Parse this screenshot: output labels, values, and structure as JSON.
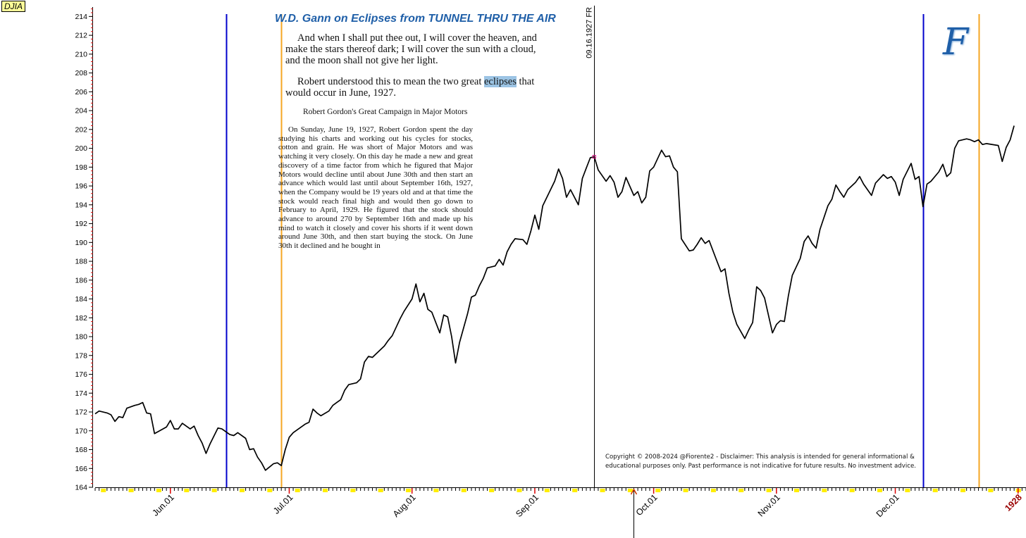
{
  "ticker": "DJIA",
  "title": "W.D. Gann on Eclipses from TUNNEL THRU THE AIR",
  "quote": {
    "para1": "And when I shall put thee out, I will cover the heaven, and make the stars thereof dark; I will cover the sun with a cloud, and the moon shall not give her light.",
    "para2_before": "Robert understood this to mean the two great ",
    "para2_highlight": "eclipses",
    "para2_after": " that would occur in June, 1927."
  },
  "section_heading": "Robert Gordon's Great Campaign in Major Motors",
  "story": "On Sunday, June 19, 1927, Robert Gordon spent the day studying his charts and working out his cycles for stocks, cotton and grain. He was short of Major Motors and was watching it very closely. On this day he made a new and great discovery of a time factor from which he figured that Major Motors would decline until about June 30th and then start an advance which would last until about September 16th, 1927, when the Company would be 19 years old and at that time the stock would reach final high and would then go down to February to April, 1929. He figured that the stock should advance to around 270 by September 16th and made up his mind to watch it closely and cover his shorts if it went down around June 30th, and then start buying the stock. On June 30th it declined and he bought in",
  "copyright": "Copyright © 2008-2024 @Fiorente2 -  Disclaimer: This analysis is intended for general informational & educational purposes only. Past performance is not indicative for future results. No investment advice.",
  "logo": "F",
  "colors": {
    "price_line": "#000000",
    "blue_lines": "#0000cc",
    "orange_lines": "#f5a623",
    "accent": "#1f5fa8",
    "highlight": "#9cc4e4",
    "tick_red": "#dd0000",
    "tick_yellow": "#ffee00"
  },
  "chart_data": {
    "type": "line",
    "ylim": [
      164,
      215
    ],
    "ytick_labels": [
      "164",
      "166",
      "168",
      "170",
      "172",
      "174",
      "176",
      "178",
      "180",
      "182",
      "184",
      "186",
      "188",
      "190",
      "192",
      "194",
      "196",
      "198",
      "200",
      "202",
      "204",
      "206",
      "208",
      "210",
      "212",
      "214"
    ],
    "xtick_labels": [
      "Jun.01",
      "Jul.01",
      "Aug.01",
      "Sep.01",
      "Oct.01",
      "Nov.01",
      "Dec.01",
      "1928"
    ],
    "x_start": "1927-05-13",
    "x_end": "1928-01-03",
    "vertical_markers": [
      {
        "date": "1927-06-15",
        "color": "blue"
      },
      {
        "date": "1927-06-29",
        "color": "orange"
      },
      {
        "date": "1927-09-16",
        "color": "black",
        "label": "09.16.1927 FR"
      },
      {
        "date": "1927-12-08",
        "color": "blue"
      },
      {
        "date": "1927-12-22",
        "color": "orange"
      }
    ],
    "current_date_marker": "1927-09-26",
    "series": [
      {
        "values": [
          [
            "1927-05-13",
            171.8
          ],
          [
            "1927-05-14",
            172.1
          ],
          [
            "1927-05-16",
            171.9
          ],
          [
            "1927-05-17",
            171.7
          ],
          [
            "1927-05-18",
            171.0
          ],
          [
            "1927-05-19",
            171.5
          ],
          [
            "1927-05-20",
            171.4
          ],
          [
            "1927-05-21",
            172.4
          ],
          [
            "1927-05-23",
            172.7
          ],
          [
            "1927-05-24",
            172.8
          ],
          [
            "1927-05-25",
            173.0
          ],
          [
            "1927-05-26",
            171.9
          ],
          [
            "1927-05-27",
            171.8
          ],
          [
            "1927-05-28",
            169.7
          ],
          [
            "1927-05-31",
            170.4
          ],
          [
            "1927-06-01",
            171.1
          ],
          [
            "1927-06-02",
            170.2
          ],
          [
            "1927-06-03",
            170.2
          ],
          [
            "1927-06-04",
            170.8
          ],
          [
            "1927-06-06",
            170.2
          ],
          [
            "1927-06-07",
            170.5
          ],
          [
            "1927-06-08",
            169.5
          ],
          [
            "1927-06-09",
            168.7
          ],
          [
            "1927-06-10",
            167.6
          ],
          [
            "1927-06-11",
            168.6
          ],
          [
            "1927-06-13",
            170.3
          ],
          [
            "1927-06-14",
            170.2
          ],
          [
            "1927-06-15",
            169.9
          ],
          [
            "1927-06-16",
            169.6
          ],
          [
            "1927-06-17",
            169.5
          ],
          [
            "1927-06-18",
            169.8
          ],
          [
            "1927-06-20",
            169.2
          ],
          [
            "1927-06-21",
            168.0
          ],
          [
            "1927-06-22",
            168.1
          ],
          [
            "1927-06-23",
            167.2
          ],
          [
            "1927-06-24",
            166.6
          ],
          [
            "1927-06-25",
            165.8
          ],
          [
            "1927-06-27",
            166.5
          ],
          [
            "1927-06-28",
            166.6
          ],
          [
            "1927-06-29",
            166.3
          ],
          [
            "1927-06-30",
            168.0
          ],
          [
            "1927-07-01",
            169.3
          ],
          [
            "1927-07-02",
            169.8
          ],
          [
            "1927-07-05",
            170.7
          ],
          [
            "1927-07-06",
            170.9
          ],
          [
            "1927-07-07",
            172.3
          ],
          [
            "1927-07-08",
            171.9
          ],
          [
            "1927-07-09",
            171.6
          ],
          [
            "1927-07-11",
            172.1
          ],
          [
            "1927-07-12",
            172.7
          ],
          [
            "1927-07-13",
            173.0
          ],
          [
            "1927-07-14",
            173.3
          ],
          [
            "1927-07-15",
            174.3
          ],
          [
            "1927-07-16",
            174.9
          ],
          [
            "1927-07-18",
            175.1
          ],
          [
            "1927-07-19",
            175.5
          ],
          [
            "1927-07-20",
            177.3
          ],
          [
            "1927-07-21",
            177.9
          ],
          [
            "1927-07-22",
            177.8
          ],
          [
            "1927-07-23",
            178.2
          ],
          [
            "1927-07-25",
            179.0
          ],
          [
            "1927-07-26",
            179.6
          ],
          [
            "1927-07-27",
            180.1
          ],
          [
            "1927-07-28",
            181.0
          ],
          [
            "1927-07-29",
            181.9
          ],
          [
            "1927-07-30",
            182.7
          ],
          [
            "1927-08-01",
            184.0
          ],
          [
            "1927-08-02",
            185.6
          ],
          [
            "1927-08-03",
            183.7
          ],
          [
            "1927-08-04",
            184.6
          ],
          [
            "1927-08-05",
            182.9
          ],
          [
            "1927-08-06",
            182.6
          ],
          [
            "1927-08-08",
            180.4
          ],
          [
            "1927-08-09",
            182.3
          ],
          [
            "1927-08-10",
            182.1
          ],
          [
            "1927-08-11",
            180.0
          ],
          [
            "1927-08-12",
            177.2
          ],
          [
            "1927-08-13",
            179.4
          ],
          [
            "1927-08-15",
            182.4
          ],
          [
            "1927-08-16",
            184.2
          ],
          [
            "1927-08-17",
            184.4
          ],
          [
            "1927-08-18",
            185.4
          ],
          [
            "1927-08-19",
            186.2
          ],
          [
            "1927-08-20",
            187.3
          ],
          [
            "1927-08-22",
            187.5
          ],
          [
            "1927-08-23",
            188.2
          ],
          [
            "1927-08-24",
            187.6
          ],
          [
            "1927-08-25",
            189.0
          ],
          [
            "1927-08-26",
            189.8
          ],
          [
            "1927-08-27",
            190.4
          ],
          [
            "1927-08-29",
            190.3
          ],
          [
            "1927-08-30",
            189.8
          ],
          [
            "1927-08-31",
            191.2
          ],
          [
            "1927-09-01",
            192.9
          ],
          [
            "1927-09-02",
            191.4
          ],
          [
            "1927-09-03",
            193.9
          ],
          [
            "1927-09-06",
            196.5
          ],
          [
            "1927-09-07",
            197.8
          ],
          [
            "1927-09-08",
            196.8
          ],
          [
            "1927-09-09",
            194.8
          ],
          [
            "1927-09-10",
            195.6
          ],
          [
            "1927-09-12",
            194.0
          ],
          [
            "1927-09-13",
            196.8
          ],
          [
            "1927-09-14",
            197.9
          ],
          [
            "1927-09-15",
            199.0
          ],
          [
            "1927-09-16",
            199.1
          ],
          [
            "1927-09-17",
            197.7
          ],
          [
            "1927-09-19",
            196.5
          ],
          [
            "1927-09-20",
            197.1
          ],
          [
            "1927-09-21",
            196.4
          ],
          [
            "1927-09-22",
            194.8
          ],
          [
            "1927-09-23",
            195.4
          ],
          [
            "1927-09-24",
            196.9
          ],
          [
            "1927-09-26",
            195.0
          ],
          [
            "1927-09-27",
            195.4
          ],
          [
            "1927-09-28",
            194.2
          ],
          [
            "1927-09-29",
            194.8
          ],
          [
            "1927-09-30",
            197.6
          ],
          [
            "1927-10-01",
            198.0
          ],
          [
            "1927-10-03",
            199.8
          ],
          [
            "1927-10-04",
            199.1
          ],
          [
            "1927-10-05",
            199.2
          ],
          [
            "1927-10-06",
            198.0
          ],
          [
            "1927-10-07",
            197.5
          ],
          [
            "1927-10-08",
            190.4
          ],
          [
            "1927-10-10",
            189.1
          ],
          [
            "1927-10-11",
            189.2
          ],
          [
            "1927-10-12",
            189.8
          ],
          [
            "1927-10-13",
            190.5
          ],
          [
            "1927-10-14",
            189.9
          ],
          [
            "1927-10-15",
            190.2
          ],
          [
            "1927-10-17",
            188.0
          ],
          [
            "1927-10-18",
            186.9
          ],
          [
            "1927-10-19",
            187.2
          ],
          [
            "1927-10-20",
            184.6
          ],
          [
            "1927-10-21",
            182.6
          ],
          [
            "1927-10-22",
            181.3
          ],
          [
            "1927-10-24",
            179.8
          ],
          [
            "1927-10-25",
            180.7
          ],
          [
            "1927-10-26",
            181.5
          ],
          [
            "1927-10-27",
            185.3
          ],
          [
            "1927-10-28",
            184.9
          ],
          [
            "1927-10-29",
            184.1
          ],
          [
            "1927-10-31",
            180.4
          ],
          [
            "1927-11-01",
            181.3
          ],
          [
            "1927-11-02",
            181.7
          ],
          [
            "1927-11-03",
            181.6
          ],
          [
            "1927-11-04",
            184.3
          ],
          [
            "1927-11-05",
            186.5
          ],
          [
            "1927-11-07",
            188.3
          ],
          [
            "1927-11-08",
            190.1
          ],
          [
            "1927-11-09",
            190.7
          ],
          [
            "1927-11-10",
            189.9
          ],
          [
            "1927-11-11",
            189.4
          ],
          [
            "1927-11-12",
            191.4
          ],
          [
            "1927-11-14",
            193.9
          ],
          [
            "1927-11-15",
            194.6
          ],
          [
            "1927-11-16",
            196.1
          ],
          [
            "1927-11-17",
            195.4
          ],
          [
            "1927-11-18",
            194.8
          ],
          [
            "1927-11-19",
            195.6
          ],
          [
            "1927-11-21",
            196.4
          ],
          [
            "1927-11-22",
            197.0
          ],
          [
            "1927-11-23",
            196.2
          ],
          [
            "1927-11-25",
            195.0
          ],
          [
            "1927-11-26",
            196.3
          ],
          [
            "1927-11-28",
            197.2
          ],
          [
            "1927-11-29",
            196.8
          ],
          [
            "1927-11-30",
            197.0
          ],
          [
            "1927-12-01",
            196.4
          ],
          [
            "1927-12-02",
            195.0
          ],
          [
            "1927-12-03",
            196.7
          ],
          [
            "1927-12-05",
            198.4
          ],
          [
            "1927-12-06",
            196.7
          ],
          [
            "1927-12-07",
            197.0
          ],
          [
            "1927-12-08",
            193.8
          ],
          [
            "1927-12-09",
            196.2
          ],
          [
            "1927-12-10",
            196.5
          ],
          [
            "1927-12-12",
            197.5
          ],
          [
            "1927-12-13",
            198.3
          ],
          [
            "1927-12-14",
            197.0
          ],
          [
            "1927-12-15",
            197.4
          ],
          [
            "1927-12-16",
            200.0
          ],
          [
            "1927-12-17",
            200.8
          ],
          [
            "1927-12-19",
            201.0
          ],
          [
            "1927-12-20",
            200.9
          ],
          [
            "1927-12-21",
            200.7
          ],
          [
            "1927-12-22",
            200.9
          ],
          [
            "1927-12-23",
            200.4
          ],
          [
            "1927-12-24",
            200.5
          ],
          [
            "1927-12-27",
            200.3
          ],
          [
            "1927-12-28",
            198.6
          ],
          [
            "1927-12-29",
            200.1
          ],
          [
            "1927-12-30",
            200.9
          ],
          [
            "1927-12-31",
            202.4
          ]
        ]
      }
    ]
  }
}
